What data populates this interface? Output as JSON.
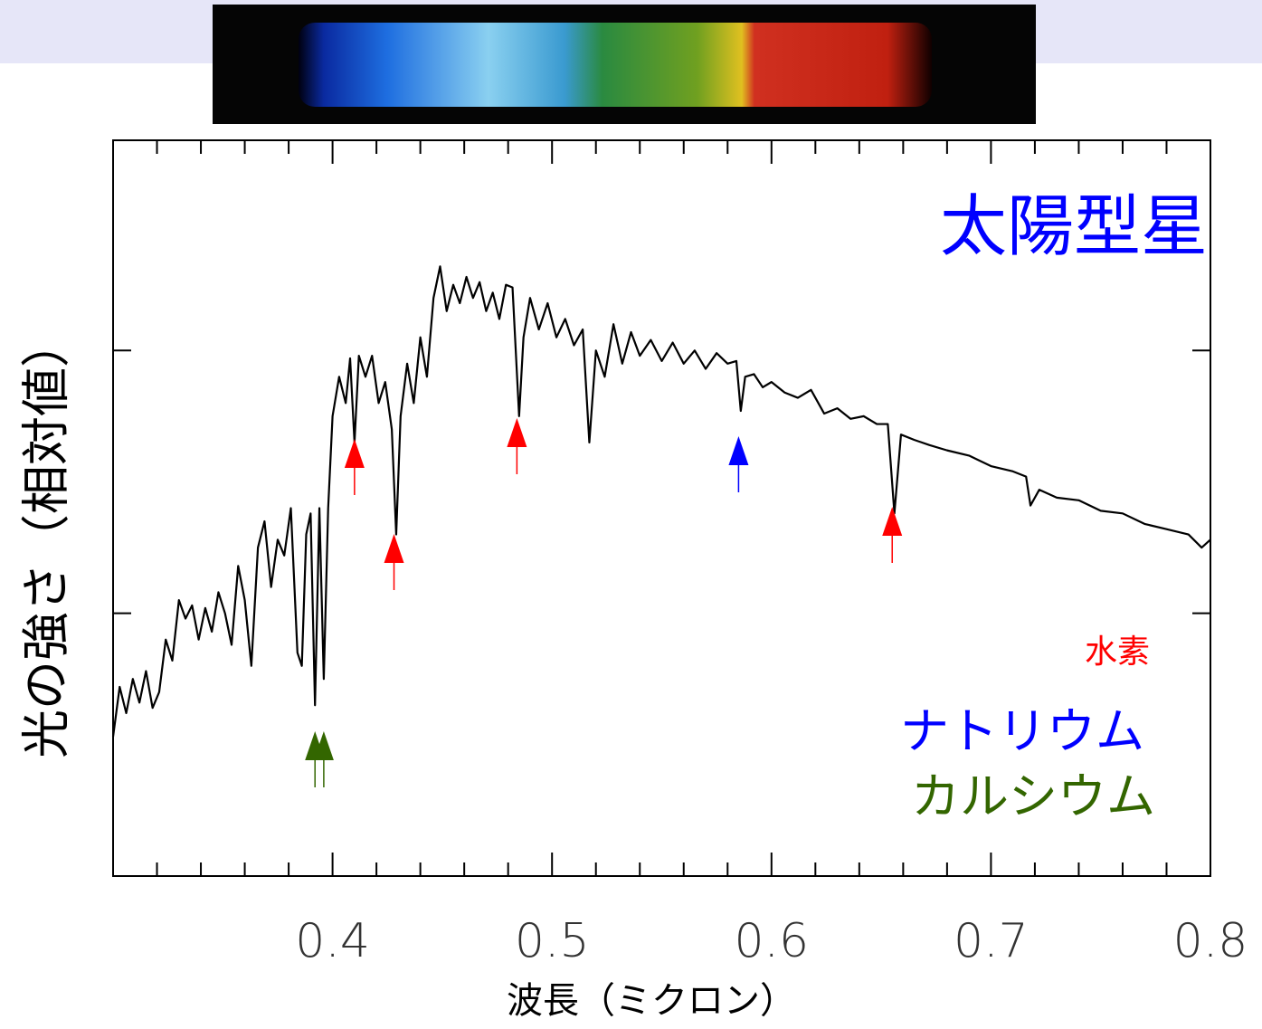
{
  "chart_data": {
    "type": "line",
    "title": "太陽型星",
    "title_color": "#0000ff",
    "x_label": "波長（ミクロン）",
    "y_label": "光の強さ（相対値）",
    "xlim": [
      0.3,
      0.8
    ],
    "xticks": [
      {
        "value": 0.4,
        "label": "0.4"
      },
      {
        "value": 0.5,
        "label": "0.5"
      },
      {
        "value": 0.6,
        "label": "0.6"
      },
      {
        "value": 0.7,
        "label": "0.7"
      },
      {
        "value": 0.8,
        "label": "0.8"
      }
    ],
    "xticks_minor": [
      0.32,
      0.34,
      0.36,
      0.38,
      0.42,
      0.44,
      0.46,
      0.48,
      0.52,
      0.54,
      0.56,
      0.58,
      0.62,
      0.64,
      0.66,
      0.68,
      0.72,
      0.74,
      0.76,
      0.78
    ],
    "ylim": [
      0,
      2.8
    ],
    "yticks": [
      1,
      2
    ],
    "series": [
      {
        "color": "#000000",
        "x": [
          0.3,
          0.303,
          0.306,
          0.309,
          0.312,
          0.315,
          0.318,
          0.321,
          0.324,
          0.327,
          0.33,
          0.333,
          0.336,
          0.339,
          0.342,
          0.345,
          0.348,
          0.351,
          0.354,
          0.357,
          0.36,
          0.363,
          0.366,
          0.369,
          0.372,
          0.375,
          0.378,
          0.381,
          0.384,
          0.386,
          0.388,
          0.39,
          0.392,
          0.394,
          0.396,
          0.398,
          0.4,
          0.403,
          0.406,
          0.408,
          0.41,
          0.412,
          0.415,
          0.418,
          0.421,
          0.424,
          0.427,
          0.429,
          0.431,
          0.434,
          0.437,
          0.44,
          0.443,
          0.446,
          0.449,
          0.452,
          0.455,
          0.458,
          0.461,
          0.464,
          0.467,
          0.47,
          0.473,
          0.476,
          0.479,
          0.482,
          0.485,
          0.487,
          0.49,
          0.494,
          0.498,
          0.502,
          0.506,
          0.51,
          0.514,
          0.517,
          0.52,
          0.524,
          0.528,
          0.532,
          0.536,
          0.54,
          0.545,
          0.55,
          0.555,
          0.56,
          0.565,
          0.57,
          0.575,
          0.58,
          0.584,
          0.586,
          0.588,
          0.592,
          0.596,
          0.6,
          0.606,
          0.612,
          0.618,
          0.624,
          0.63,
          0.636,
          0.642,
          0.648,
          0.653,
          0.656,
          0.659,
          0.665,
          0.672,
          0.68,
          0.69,
          0.7,
          0.71,
          0.716,
          0.718,
          0.722,
          0.73,
          0.74,
          0.75,
          0.76,
          0.77,
          0.78,
          0.79,
          0.796,
          0.8
        ],
        "values": [
          0.53,
          0.72,
          0.62,
          0.75,
          0.66,
          0.78,
          0.64,
          0.7,
          0.9,
          0.82,
          1.05,
          0.98,
          1.03,
          0.9,
          1.02,
          0.93,
          1.08,
          1.0,
          0.88,
          1.18,
          1.05,
          0.8,
          1.25,
          1.35,
          1.1,
          1.28,
          1.22,
          1.4,
          0.85,
          0.8,
          1.3,
          1.38,
          0.65,
          1.4,
          0.75,
          1.4,
          1.75,
          1.9,
          1.8,
          1.97,
          1.65,
          1.98,
          1.9,
          1.98,
          1.8,
          1.88,
          1.7,
          1.3,
          1.75,
          1.95,
          1.8,
          2.05,
          1.9,
          2.2,
          2.32,
          2.15,
          2.25,
          2.18,
          2.28,
          2.2,
          2.26,
          2.15,
          2.22,
          2.12,
          2.25,
          2.24,
          1.75,
          2.05,
          2.2,
          2.08,
          2.18,
          2.05,
          2.12,
          2.02,
          2.08,
          1.65,
          2.0,
          1.9,
          2.1,
          1.95,
          2.07,
          1.98,
          2.04,
          1.96,
          2.03,
          1.95,
          2.0,
          1.93,
          1.99,
          1.95,
          1.96,
          1.77,
          1.9,
          1.91,
          1.86,
          1.88,
          1.84,
          1.82,
          1.85,
          1.76,
          1.78,
          1.74,
          1.75,
          1.72,
          1.72,
          1.38,
          1.68,
          1.66,
          1.64,
          1.62,
          1.6,
          1.56,
          1.54,
          1.52,
          1.41,
          1.47,
          1.44,
          1.43,
          1.39,
          1.38,
          1.34,
          1.32,
          1.3,
          1.25,
          1.28
        ]
      }
    ],
    "annotations": [
      {
        "text": "水素",
        "color": "#ff0000",
        "markers": [
          0.41,
          0.428,
          0.484,
          0.655
        ]
      },
      {
        "text": "ナトリウム",
        "color": "#0000ff",
        "markers": [
          0.585
        ]
      },
      {
        "text": "カルシウム",
        "color": "#336600",
        "markers": [
          0.392,
          0.396
        ]
      }
    ]
  }
}
